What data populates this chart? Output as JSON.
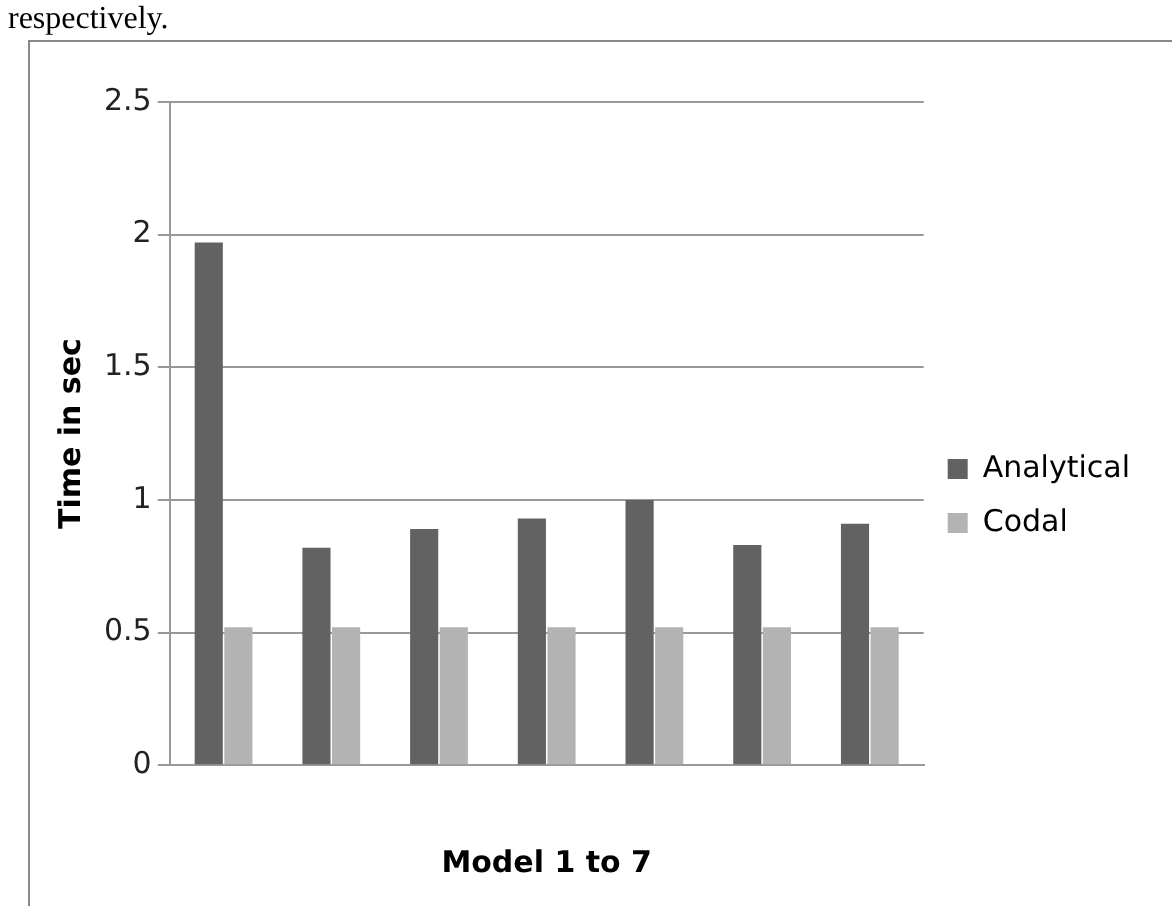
{
  "chart_data": {
    "type": "bar",
    "xlabel": "Model 1 to 7",
    "ylabel": "Time in sec",
    "annotations": [
      "respectively."
    ],
    "categories": [
      null,
      null,
      null,
      null,
      null,
      null,
      null
    ],
    "series": [
      {
        "name": "Analytical",
        "color": "#626262",
        "values": [
          1.97,
          0.82,
          0.89,
          0.93,
          1.0,
          0.83,
          0.91
        ]
      },
      {
        "name": "Codal",
        "color": "#b3b3b3",
        "values": [
          0.52,
          0.52,
          0.52,
          0.52,
          0.52,
          0.52,
          0.52
        ]
      }
    ],
    "ylim": [
      0,
      2.5
    ],
    "yticks": [
      0,
      0.5,
      1,
      1.5,
      2,
      2.5
    ],
    "grid": "y",
    "legend": "right"
  }
}
